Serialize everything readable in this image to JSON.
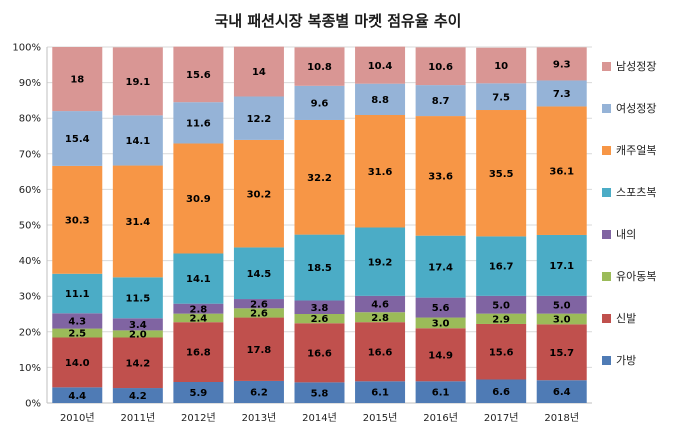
{
  "chart_data": {
    "type": "bar",
    "stacked": true,
    "percent_scale": true,
    "title": "국내 패션시장 복종별 마켓 점유율 추이",
    "categories": [
      "2010년",
      "2011년",
      "2012년",
      "2013년",
      "2014년",
      "2015년",
      "2016년",
      "2017년",
      "2018년"
    ],
    "y_ticks": [
      "0%",
      "10%",
      "20%",
      "30%",
      "40%",
      "50%",
      "60%",
      "70%",
      "80%",
      "90%",
      "100%"
    ],
    "ylim": [
      0,
      100
    ],
    "legend_position": "right",
    "series": [
      {
        "name": "가방",
        "color": "#4f7bb5",
        "values": [
          4.4,
          4.2,
          5.9,
          6.2,
          5.8,
          6.1,
          6.1,
          6.6,
          6.4
        ],
        "labels": [
          "4.4",
          "4.2",
          "5.9",
          "6.2",
          "5.8",
          "6.1",
          "6.1",
          "6.6",
          "6.4"
        ]
      },
      {
        "name": "신발",
        "color": "#c0504d",
        "values": [
          14.0,
          14.2,
          16.8,
          17.8,
          16.6,
          16.6,
          14.9,
          15.6,
          15.7
        ],
        "labels": [
          "14.0",
          "14.2",
          "16.8",
          "17.8",
          "16.6",
          "16.6",
          "14.9",
          "15.6",
          "15.7"
        ]
      },
      {
        "name": "유아동복",
        "color": "#9bbb59",
        "values": [
          2.5,
          2.0,
          2.4,
          2.6,
          2.6,
          2.8,
          3.0,
          2.9,
          3.0
        ],
        "labels": [
          "2.5",
          "2.0",
          "2.4",
          "2.6",
          "2.6",
          "2.8",
          "3.0",
          "2.9",
          "3.0"
        ]
      },
      {
        "name": "내의",
        "color": "#8064a2",
        "values": [
          4.3,
          3.4,
          2.8,
          2.6,
          3.8,
          4.6,
          5.6,
          5.0,
          5.0
        ],
        "labels": [
          "4.3",
          "3.4",
          "2.8",
          "2.6",
          "3.8",
          "4.6",
          "5.6",
          "5.0",
          "5.0"
        ]
      },
      {
        "name": "스포츠복",
        "color": "#4bacc6",
        "values": [
          11.1,
          11.5,
          14.1,
          14.5,
          18.5,
          19.2,
          17.4,
          16.7,
          17.1
        ],
        "labels": [
          "11.1",
          "11.5",
          "14.1",
          "14.5",
          "18.5",
          "19.2",
          "17.4",
          "16.7",
          "17.1"
        ]
      },
      {
        "name": "캐주얼복",
        "color": "#f79646",
        "values": [
          30.3,
          31.4,
          30.9,
          30.2,
          32.2,
          31.6,
          33.6,
          35.5,
          36.1
        ],
        "labels": [
          "30.3",
          "31.4",
          "30.9",
          "30.2",
          "32.2",
          "31.6",
          "33.6",
          "35.5",
          "36.1"
        ]
      },
      {
        "name": "여성정장",
        "color": "#95b3d7",
        "values": [
          15.4,
          14.1,
          11.6,
          12.2,
          9.6,
          8.8,
          8.7,
          7.5,
          7.3
        ],
        "labels": [
          "15.4",
          "14.1",
          "11.6",
          "12.2",
          "9.6",
          "8.8",
          "8.7",
          "7.5",
          "7.3"
        ]
      },
      {
        "name": "남성정장",
        "color": "#d99694",
        "values": [
          18,
          19.1,
          15.6,
          14,
          10.8,
          10.4,
          10.6,
          10,
          9.3
        ],
        "labels": [
          "18",
          "19.1",
          "15.6",
          "14",
          "10.8",
          "10.4",
          "10.6",
          "10",
          "9.3"
        ]
      }
    ],
    "legend_order": [
      "남성정장",
      "여성정장",
      "캐주얼복",
      "스포츠복",
      "내의",
      "유아동복",
      "신발",
      "가방"
    ]
  }
}
